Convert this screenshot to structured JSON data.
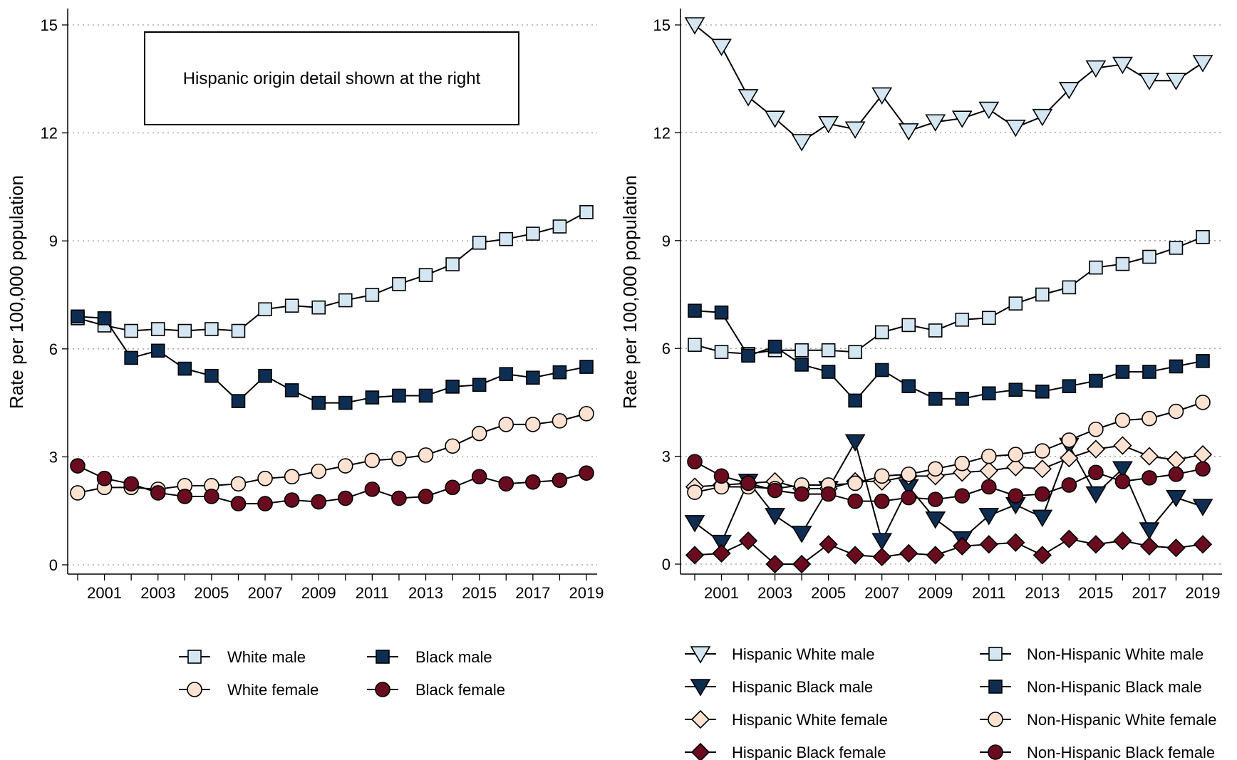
{
  "chart_data": [
    {
      "type": "line",
      "title": "",
      "ylabel": "Rate per 100,000 population",
      "xlabel": "",
      "ylim": [
        0,
        15
      ],
      "yticks": [
        0,
        3,
        6,
        9,
        12,
        15
      ],
      "xlim": [
        2000,
        2019
      ],
      "xticks": [
        2001,
        2003,
        2005,
        2007,
        2009,
        2011,
        2013,
        2015,
        2017,
        2019
      ],
      "grid": "horizontal dotted",
      "annotation": "Hispanic origin detail shown at the right",
      "legend_position": "bottom",
      "x": [
        2000,
        2001,
        2002,
        2003,
        2004,
        2005,
        2006,
        2007,
        2008,
        2009,
        2010,
        2011,
        2012,
        2013,
        2014,
        2015,
        2016,
        2017,
        2018,
        2019
      ],
      "series": [
        {
          "name": "White male",
          "marker": "square",
          "color": "#d4e6f1",
          "values": [
            6.85,
            6.65,
            6.5,
            6.55,
            6.5,
            6.55,
            6.5,
            7.1,
            7.2,
            7.15,
            7.35,
            7.5,
            7.8,
            8.05,
            8.35,
            8.95,
            9.05,
            9.2,
            9.4,
            9.8
          ]
        },
        {
          "name": "Black male",
          "marker": "square",
          "color": "#0e2d52",
          "values": [
            6.9,
            6.85,
            5.75,
            5.95,
            5.45,
            5.25,
            4.55,
            5.25,
            4.85,
            4.5,
            4.5,
            4.65,
            4.7,
            4.7,
            4.95,
            5.0,
            5.3,
            5.2,
            5.35,
            5.5
          ]
        },
        {
          "name": "White female",
          "marker": "circle",
          "color": "#fde2d2",
          "values": [
            2.0,
            2.15,
            2.15,
            2.1,
            2.2,
            2.2,
            2.25,
            2.4,
            2.45,
            2.6,
            2.75,
            2.9,
            2.95,
            3.05,
            3.3,
            3.65,
            3.9,
            3.9,
            4.0,
            4.2
          ]
        },
        {
          "name": "Black female",
          "marker": "circle",
          "color": "#6b0b20",
          "values": [
            2.75,
            2.4,
            2.25,
            2.0,
            1.9,
            1.9,
            1.7,
            1.7,
            1.8,
            1.75,
            1.85,
            2.1,
            1.85,
            1.9,
            2.15,
            2.45,
            2.25,
            2.3,
            2.35,
            2.55
          ]
        }
      ]
    },
    {
      "type": "line",
      "title": "",
      "ylabel": "Rate per 100,000 population",
      "xlabel": "",
      "ylim": [
        0,
        15
      ],
      "yticks": [
        0,
        3,
        6,
        9,
        12,
        15
      ],
      "xlim": [
        2000,
        2019
      ],
      "xticks": [
        2001,
        2003,
        2005,
        2007,
        2009,
        2011,
        2013,
        2015,
        2017,
        2019
      ],
      "grid": "horizontal dotted",
      "legend_position": "bottom",
      "x": [
        2000,
        2001,
        2002,
        2003,
        2004,
        2005,
        2006,
        2007,
        2008,
        2009,
        2010,
        2011,
        2012,
        2013,
        2014,
        2015,
        2016,
        2017,
        2018,
        2019
      ],
      "series": [
        {
          "name": "Hispanic White male",
          "marker": "triangle-down",
          "color": "#d4e6f1",
          "values": [
            15.0,
            14.4,
            13.0,
            12.4,
            11.75,
            12.25,
            12.1,
            13.05,
            12.05,
            12.3,
            12.4,
            12.65,
            12.15,
            12.45,
            13.2,
            13.8,
            13.9,
            13.45,
            13.45,
            13.95
          ]
        },
        {
          "name": "Hispanic Black male",
          "marker": "triangle-down",
          "color": "#0e2d52",
          "values": [
            1.15,
            0.6,
            2.3,
            1.35,
            0.85,
            2.1,
            3.4,
            0.65,
            2.15,
            1.25,
            0.7,
            1.35,
            1.65,
            1.3,
            3.3,
            1.95,
            2.65,
            0.95,
            1.85,
            1.6
          ]
        },
        {
          "name": "Hispanic White female",
          "marker": "diamond",
          "color": "#fde2d2",
          "values": [
            2.15,
            2.2,
            2.25,
            2.3,
            2.1,
            2.1,
            2.3,
            2.3,
            2.45,
            2.45,
            2.55,
            2.6,
            2.7,
            2.65,
            2.95,
            3.2,
            3.3,
            3.0,
            2.9,
            3.05
          ]
        },
        {
          "name": "Hispanic Black female",
          "marker": "diamond",
          "color": "#6b0b20",
          "values": [
            0.25,
            0.3,
            0.65,
            0.0,
            0.0,
            0.55,
            0.25,
            0.2,
            0.3,
            0.25,
            0.5,
            0.55,
            0.6,
            0.25,
            0.7,
            0.55,
            0.65,
            0.5,
            0.45,
            0.55
          ]
        },
        {
          "name": "Non-Hispanic White male",
          "marker": "square",
          "color": "#d4e6f1",
          "values": [
            6.1,
            5.9,
            5.85,
            5.95,
            5.95,
            5.95,
            5.9,
            6.45,
            6.65,
            6.5,
            6.8,
            6.85,
            7.25,
            7.5,
            7.7,
            8.25,
            8.35,
            8.55,
            8.8,
            9.1
          ]
        },
        {
          "name": "Non-Hispanic Black male",
          "marker": "square",
          "color": "#0e2d52",
          "values": [
            7.05,
            7.0,
            5.8,
            6.05,
            5.55,
            5.35,
            4.55,
            5.4,
            4.95,
            4.6,
            4.6,
            4.75,
            4.85,
            4.8,
            4.95,
            5.1,
            5.35,
            5.35,
            5.5,
            5.65
          ]
        },
        {
          "name": "Non-Hispanic White female",
          "marker": "circle",
          "color": "#fde2d2",
          "values": [
            2.0,
            2.15,
            2.15,
            2.1,
            2.2,
            2.2,
            2.25,
            2.45,
            2.5,
            2.65,
            2.8,
            3.0,
            3.05,
            3.15,
            3.45,
            3.75,
            4.0,
            4.05,
            4.25,
            4.5
          ]
        },
        {
          "name": "Non-Hispanic Black female",
          "marker": "circle",
          "color": "#6b0b20",
          "values": [
            2.85,
            2.45,
            2.25,
            2.05,
            1.95,
            1.95,
            1.75,
            1.75,
            1.85,
            1.8,
            1.9,
            2.15,
            1.9,
            1.95,
            2.2,
            2.55,
            2.3,
            2.4,
            2.5,
            2.65
          ]
        }
      ]
    }
  ]
}
